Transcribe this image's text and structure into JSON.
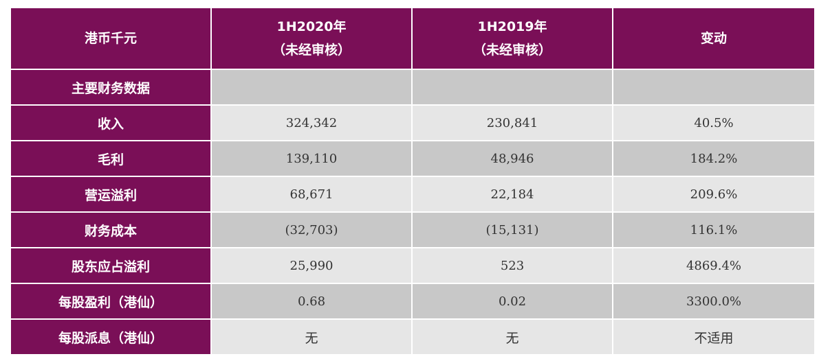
{
  "table": {
    "headers": [
      {
        "line1": "港币千元",
        "line2": ""
      },
      {
        "line1": "1H2020年",
        "line2": "（未经审核）"
      },
      {
        "line1": "1H2019年",
        "line2": "（未经审核）"
      },
      {
        "line1": "变动",
        "line2": ""
      }
    ],
    "rows": [
      {
        "label": "主要财务数据",
        "c1": "",
        "c2": "",
        "c3": ""
      },
      {
        "label": "收入",
        "c1": "324,342",
        "c2": "230,841",
        "c3": "40.5%"
      },
      {
        "label": "毛利",
        "c1": "139,110",
        "c2": "48,946",
        "c3": "184.2%"
      },
      {
        "label": "营运溢利",
        "c1": "68,671",
        "c2": "22,184",
        "c3": "209.6%"
      },
      {
        "label": "财务成本",
        "c1": "(32,703)",
        "c2": "(15,131)",
        "c3": "116.1%"
      },
      {
        "label": "股东应占溢利",
        "c1": "25,990",
        "c2": "523",
        "c3": "4869.4%"
      },
      {
        "label": "每股盈利（港仙）",
        "c1": "0.68",
        "c2": "0.02",
        "c3": "3300.0%"
      },
      {
        "label": "每股派息（港仙）",
        "c1": "无",
        "c2": "无",
        "c3": "不适用"
      }
    ]
  },
  "colors": {
    "header_bg": "#7a0f57",
    "header_text": "#ffffff",
    "cell_light": "#e6e6e6",
    "cell_dark": "#c8c8c8"
  }
}
